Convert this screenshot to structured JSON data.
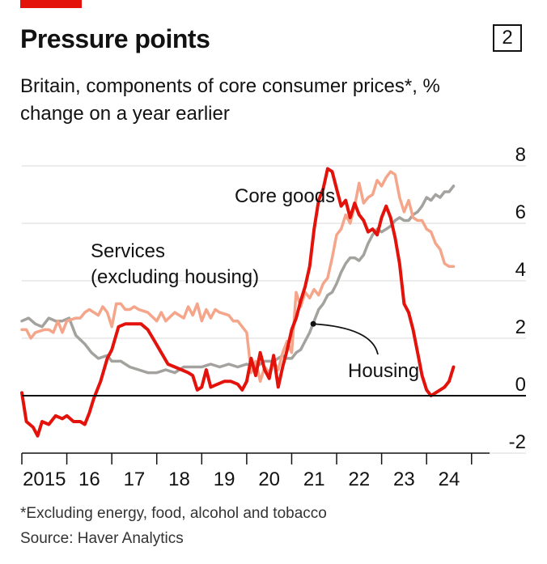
{
  "header": {
    "title": "Pressure points",
    "badge": "2",
    "subtitle": "Britain, components of core consumer prices*, % change on a year earlier"
  },
  "footer": {
    "footnote": "*Excluding energy, food, alcohol and tobacco",
    "source": "Source: Haver Analytics"
  },
  "chart_data": {
    "type": "line",
    "title": "",
    "xlabel": "",
    "ylabel": "",
    "ylim": [
      -2,
      8
    ],
    "xlim": [
      2015,
      2025.4
    ],
    "y_ticks": [
      "8",
      "6",
      "4",
      "2",
      "0",
      "-2"
    ],
    "x_ticks": [
      "2015",
      "16",
      "17",
      "18",
      "19",
      "20",
      "21",
      "22",
      "23",
      "24"
    ],
    "grid": true,
    "colors": {
      "core_goods": "#e3120b",
      "services": "#f4a58a",
      "housing": "#a4a29e",
      "zero_line": "#121212",
      "grid": "#d9d9d9"
    },
    "annotations": [
      "Core goods",
      "Services (excluding housing)",
      "Housing"
    ],
    "series": [
      {
        "name": "Core goods",
        "key": "core_goods",
        "points": [
          [
            2015.0,
            0.1
          ],
          [
            2015.1,
            -0.9
          ],
          [
            2015.25,
            -1.1
          ],
          [
            2015.35,
            -1.4
          ],
          [
            2015.45,
            -0.9
          ],
          [
            2015.6,
            -1.0
          ],
          [
            2015.75,
            -0.7
          ],
          [
            2015.9,
            -0.8
          ],
          [
            2016.0,
            -0.7
          ],
          [
            2016.15,
            -0.9
          ],
          [
            2016.3,
            -0.9
          ],
          [
            2016.4,
            -1.0
          ],
          [
            2016.5,
            -0.6
          ],
          [
            2016.6,
            -0.1
          ],
          [
            2016.75,
            0.5
          ],
          [
            2016.9,
            1.3
          ],
          [
            2017.0,
            1.6
          ],
          [
            2017.15,
            2.4
          ],
          [
            2017.3,
            2.5
          ],
          [
            2017.5,
            2.5
          ],
          [
            2017.65,
            2.5
          ],
          [
            2017.8,
            2.3
          ],
          [
            2017.95,
            1.9
          ],
          [
            2018.1,
            1.5
          ],
          [
            2018.25,
            1.1
          ],
          [
            2018.4,
            1.0
          ],
          [
            2018.55,
            0.9
          ],
          [
            2018.7,
            0.8
          ],
          [
            2018.8,
            0.7
          ],
          [
            2018.9,
            0.2
          ],
          [
            2019.0,
            0.3
          ],
          [
            2019.1,
            0.9
          ],
          [
            2019.2,
            0.3
          ],
          [
            2019.35,
            0.4
          ],
          [
            2019.5,
            0.5
          ],
          [
            2019.65,
            0.5
          ],
          [
            2019.8,
            0.4
          ],
          [
            2019.9,
            0.2
          ],
          [
            2020.0,
            0.5
          ],
          [
            2020.1,
            1.3
          ],
          [
            2020.2,
            0.7
          ],
          [
            2020.3,
            1.5
          ],
          [
            2020.4,
            0.9
          ],
          [
            2020.5,
            0.6
          ],
          [
            2020.6,
            1.4
          ],
          [
            2020.7,
            0.3
          ],
          [
            2020.8,
            1.0
          ],
          [
            2020.9,
            1.6
          ],
          [
            2021.0,
            2.3
          ],
          [
            2021.1,
            2.7
          ],
          [
            2021.2,
            3.3
          ],
          [
            2021.3,
            3.8
          ],
          [
            2021.4,
            4.5
          ],
          [
            2021.5,
            5.8
          ],
          [
            2021.6,
            6.8
          ],
          [
            2021.7,
            7.2
          ],
          [
            2021.8,
            7.9
          ],
          [
            2021.9,
            7.8
          ],
          [
            2022.0,
            7.2
          ],
          [
            2022.1,
            6.6
          ],
          [
            2022.2,
            6.8
          ],
          [
            2022.3,
            6.2
          ],
          [
            2022.4,
            6.7
          ],
          [
            2022.5,
            6.3
          ],
          [
            2022.6,
            6.1
          ],
          [
            2022.7,
            5.7
          ],
          [
            2022.8,
            5.8
          ],
          [
            2022.9,
            5.6
          ],
          [
            2023.0,
            6.2
          ],
          [
            2023.1,
            6.6
          ],
          [
            2023.2,
            6.2
          ],
          [
            2023.3,
            5.5
          ],
          [
            2023.4,
            4.6
          ],
          [
            2023.5,
            3.2
          ],
          [
            2023.6,
            2.9
          ],
          [
            2023.7,
            2.3
          ],
          [
            2023.8,
            1.5
          ],
          [
            2023.9,
            0.7
          ],
          [
            2024.0,
            0.2
          ],
          [
            2024.1,
            0.0
          ],
          [
            2024.2,
            0.1
          ],
          [
            2024.3,
            0.2
          ],
          [
            2024.4,
            0.3
          ],
          [
            2024.5,
            0.5
          ],
          [
            2024.6,
            1.0
          ]
        ]
      },
      {
        "name": "Services (excluding housing)",
        "key": "services",
        "points": [
          [
            2015.0,
            2.3
          ],
          [
            2015.1,
            2.3
          ],
          [
            2015.2,
            2.0
          ],
          [
            2015.3,
            2.2
          ],
          [
            2015.5,
            2.3
          ],
          [
            2015.6,
            2.3
          ],
          [
            2015.7,
            2.2
          ],
          [
            2015.8,
            2.6
          ],
          [
            2015.9,
            2.2
          ],
          [
            2016.0,
            2.6
          ],
          [
            2016.2,
            2.7
          ],
          [
            2016.3,
            2.7
          ],
          [
            2016.4,
            2.9
          ],
          [
            2016.5,
            3.0
          ],
          [
            2016.7,
            2.8
          ],
          [
            2016.8,
            3.1
          ],
          [
            2016.9,
            2.9
          ],
          [
            2017.0,
            2.4
          ],
          [
            2017.1,
            3.2
          ],
          [
            2017.2,
            3.2
          ],
          [
            2017.3,
            3.0
          ],
          [
            2017.4,
            3.0
          ],
          [
            2017.5,
            3.1
          ],
          [
            2017.6,
            3.0
          ],
          [
            2017.8,
            2.9
          ],
          [
            2018.0,
            2.6
          ],
          [
            2018.1,
            2.9
          ],
          [
            2018.2,
            2.6
          ],
          [
            2018.4,
            2.9
          ],
          [
            2018.6,
            2.7
          ],
          [
            2018.7,
            3.1
          ],
          [
            2018.8,
            2.8
          ],
          [
            2018.9,
            3.2
          ],
          [
            2019.0,
            2.6
          ],
          [
            2019.1,
            3.0
          ],
          [
            2019.2,
            2.7
          ],
          [
            2019.3,
            3.0
          ],
          [
            2019.4,
            2.9
          ],
          [
            2019.6,
            2.8
          ],
          [
            2019.7,
            2.6
          ],
          [
            2019.8,
            2.6
          ],
          [
            2019.9,
            2.4
          ],
          [
            2020.0,
            2.2
          ],
          [
            2020.05,
            1.5
          ],
          [
            2020.1,
            0.8
          ],
          [
            2020.2,
            1.2
          ],
          [
            2020.3,
            0.5
          ],
          [
            2020.4,
            1.0
          ],
          [
            2020.5,
            0.8
          ],
          [
            2020.6,
            1.2
          ],
          [
            2020.7,
            0.9
          ],
          [
            2020.8,
            1.5
          ],
          [
            2020.9,
            1.9
          ],
          [
            2021.0,
            1.5
          ],
          [
            2021.1,
            3.6
          ],
          [
            2021.2,
            3.1
          ],
          [
            2021.3,
            3.6
          ],
          [
            2021.4,
            3.4
          ],
          [
            2021.5,
            3.7
          ],
          [
            2021.6,
            3.5
          ],
          [
            2021.7,
            3.9
          ],
          [
            2021.8,
            4.1
          ],
          [
            2021.9,
            4.8
          ],
          [
            2022.0,
            5.6
          ],
          [
            2022.1,
            5.8
          ],
          [
            2022.2,
            6.3
          ],
          [
            2022.3,
            6.0
          ],
          [
            2022.4,
            6.6
          ],
          [
            2022.5,
            7.4
          ],
          [
            2022.6,
            6.7
          ],
          [
            2022.7,
            6.9
          ],
          [
            2022.8,
            7.0
          ],
          [
            2022.9,
            7.5
          ],
          [
            2023.0,
            7.3
          ],
          [
            2023.1,
            7.6
          ],
          [
            2023.2,
            7.8
          ],
          [
            2023.3,
            7.7
          ],
          [
            2023.4,
            6.9
          ],
          [
            2023.5,
            6.4
          ],
          [
            2023.6,
            6.8
          ],
          [
            2023.7,
            6.2
          ],
          [
            2023.8,
            6.1
          ],
          [
            2023.9,
            6.1
          ],
          [
            2024.0,
            5.8
          ],
          [
            2024.1,
            5.7
          ],
          [
            2024.2,
            5.3
          ],
          [
            2024.3,
            5.1
          ],
          [
            2024.4,
            4.6
          ],
          [
            2024.5,
            4.5
          ],
          [
            2024.6,
            4.5
          ]
        ]
      },
      {
        "name": "Housing",
        "key": "housing",
        "points": [
          [
            2015.0,
            2.6
          ],
          [
            2015.15,
            2.7
          ],
          [
            2015.3,
            2.5
          ],
          [
            2015.45,
            2.4
          ],
          [
            2015.6,
            2.7
          ],
          [
            2015.75,
            2.6
          ],
          [
            2015.9,
            2.6
          ],
          [
            2016.05,
            2.7
          ],
          [
            2016.2,
            2.1
          ],
          [
            2016.4,
            1.8
          ],
          [
            2016.55,
            1.5
          ],
          [
            2016.7,
            1.3
          ],
          [
            2016.9,
            1.4
          ],
          [
            2017.0,
            1.2
          ],
          [
            2017.2,
            1.2
          ],
          [
            2017.4,
            1.0
          ],
          [
            2017.6,
            0.9
          ],
          [
            2017.8,
            0.8
          ],
          [
            2018.0,
            0.8
          ],
          [
            2018.2,
            0.9
          ],
          [
            2018.4,
            0.8
          ],
          [
            2018.6,
            1.0
          ],
          [
            2018.8,
            1.0
          ],
          [
            2019.0,
            1.0
          ],
          [
            2019.2,
            1.1
          ],
          [
            2019.4,
            1.0
          ],
          [
            2019.6,
            1.1
          ],
          [
            2019.8,
            1.0
          ],
          [
            2020.0,
            1.1
          ],
          [
            2020.2,
            1.0
          ],
          [
            2020.4,
            1.2
          ],
          [
            2020.6,
            1.2
          ],
          [
            2020.8,
            1.4
          ],
          [
            2020.9,
            1.3
          ],
          [
            2021.0,
            1.3
          ],
          [
            2021.1,
            1.5
          ],
          [
            2021.2,
            1.6
          ],
          [
            2021.3,
            1.9
          ],
          [
            2021.4,
            2.2
          ],
          [
            2021.5,
            2.6
          ],
          [
            2021.6,
            3.0
          ],
          [
            2021.7,
            3.2
          ],
          [
            2021.8,
            3.5
          ],
          [
            2021.9,
            3.6
          ],
          [
            2022.0,
            3.9
          ],
          [
            2022.1,
            4.3
          ],
          [
            2022.2,
            4.6
          ],
          [
            2022.3,
            4.8
          ],
          [
            2022.4,
            4.8
          ],
          [
            2022.5,
            4.7
          ],
          [
            2022.6,
            4.9
          ],
          [
            2022.7,
            5.3
          ],
          [
            2022.8,
            5.6
          ],
          [
            2022.9,
            5.8
          ],
          [
            2023.0,
            5.7
          ],
          [
            2023.1,
            5.8
          ],
          [
            2023.2,
            5.9
          ],
          [
            2023.3,
            6.1
          ],
          [
            2023.4,
            6.2
          ],
          [
            2023.5,
            6.1
          ],
          [
            2023.6,
            6.1
          ],
          [
            2023.7,
            6.3
          ],
          [
            2023.8,
            6.4
          ],
          [
            2023.9,
            6.6
          ],
          [
            2024.0,
            6.9
          ],
          [
            2024.1,
            6.8
          ],
          [
            2024.2,
            7.0
          ],
          [
            2024.3,
            6.9
          ],
          [
            2024.4,
            7.1
          ],
          [
            2024.5,
            7.1
          ],
          [
            2024.6,
            7.3
          ]
        ]
      }
    ]
  }
}
